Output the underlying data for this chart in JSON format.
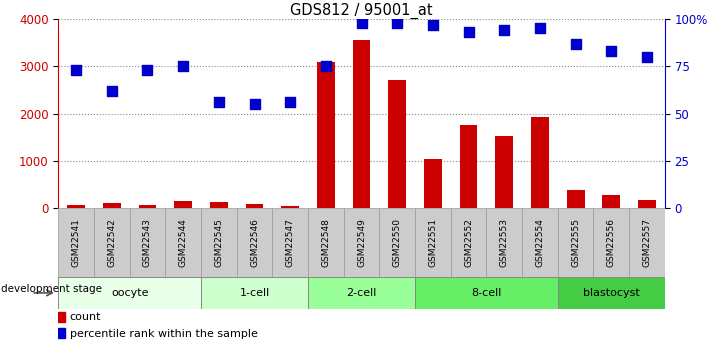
{
  "title": "GDS812 / 95001_at",
  "samples": [
    "GSM22541",
    "GSM22542",
    "GSM22543",
    "GSM22544",
    "GSM22545",
    "GSM22546",
    "GSM22547",
    "GSM22548",
    "GSM22549",
    "GSM22550",
    "GSM22551",
    "GSM22552",
    "GSM22553",
    "GSM22554",
    "GSM22555",
    "GSM22556",
    "GSM22557"
  ],
  "count": [
    60,
    100,
    60,
    150,
    120,
    80,
    50,
    3080,
    3560,
    2700,
    1030,
    1760,
    1530,
    1920,
    380,
    270,
    170
  ],
  "percentile": [
    73,
    62,
    73,
    75,
    56,
    55,
    56,
    75,
    98,
    98,
    97,
    93,
    94,
    95,
    87,
    83,
    80
  ],
  "stages": [
    {
      "label": "oocyte",
      "start": 0,
      "end": 3
    },
    {
      "label": "1-cell",
      "start": 4,
      "end": 6
    },
    {
      "label": "2-cell",
      "start": 7,
      "end": 9
    },
    {
      "label": "8-cell",
      "start": 10,
      "end": 13
    },
    {
      "label": "blastocyst",
      "start": 14,
      "end": 16
    }
  ],
  "stage_colors": [
    "#e8ffe8",
    "#ccffcc",
    "#99ff99",
    "#66ee66",
    "#44cc44"
  ],
  "bar_color": "#cc0000",
  "dot_color": "#0000cc",
  "sample_box_color": "#cccccc",
  "ylim_left": [
    0,
    4000
  ],
  "ylim_right": [
    0,
    100
  ],
  "yticks_left": [
    0,
    1000,
    2000,
    3000,
    4000
  ],
  "yticks_right": [
    0,
    25,
    50,
    75,
    100
  ],
  "ytick_labels_right": [
    "0",
    "25",
    "50",
    "75",
    "100%"
  ],
  "grid_color": "#888888",
  "background_color": "#ffffff",
  "bar_width": 0.5,
  "dot_size": 55,
  "left_tick_color": "#cc0000",
  "right_tick_color": "#0000cc",
  "dev_stage_label": "development stage"
}
